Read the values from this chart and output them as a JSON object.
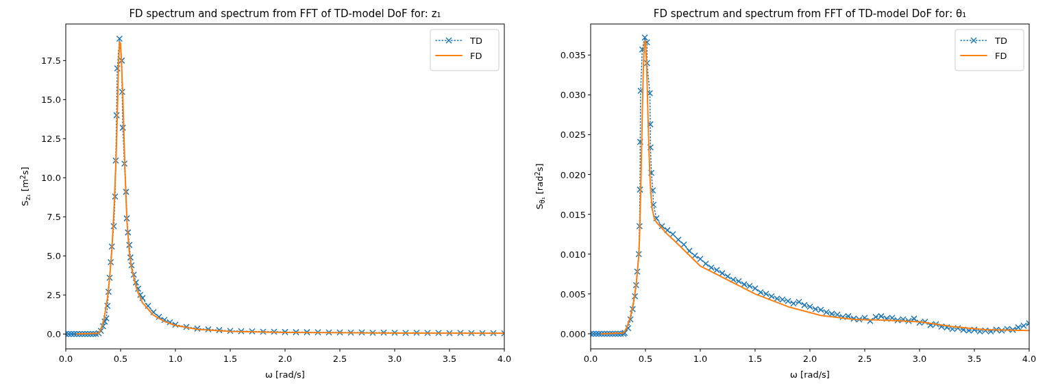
{
  "chart_data": [
    {
      "type": "line",
      "title": "FD spectrum and spectrum from FFT of TD-model DoF for: z₁",
      "xlabel": "ω [rad/s]",
      "ylabel": "S$_{z₁}$ [m$^{2}$s]",
      "xlim": [
        0,
        4
      ],
      "ylim": [
        -0.95,
        19.84
      ],
      "xticks": [
        {
          "value": 0,
          "label": "0.0"
        },
        {
          "value": 0.5,
          "label": "0.5"
        },
        {
          "value": 1,
          "label": "1.0"
        },
        {
          "value": 1.5,
          "label": "1.5"
        },
        {
          "value": 2,
          "label": "2.0"
        },
        {
          "value": 2.5,
          "label": "2.5"
        },
        {
          "value": 3,
          "label": "3.0"
        },
        {
          "value": 3.5,
          "label": "3.5"
        },
        {
          "value": 4,
          "label": "4.0"
        }
      ],
      "yticks": [
        {
          "value": 0,
          "label": "0.0"
        },
        2.5,
        {
          "value": 5,
          "label": "5.0"
        },
        7.5,
        {
          "value": 10,
          "label": "10.0"
        },
        12.5,
        {
          "value": 15,
          "label": "15.0"
        },
        17.5
      ],
      "grid": false,
      "legend": "top right",
      "series": [
        {
          "name": "TD",
          "color": "#1f77b4",
          "marker": "cross",
          "line_style": "dotted",
          "x": [
            0,
            0.025,
            0.05,
            0.075,
            0.1,
            0.125,
            0.15,
            0.175,
            0.2,
            0.225,
            0.25,
            0.275,
            0.3,
            0.32,
            0.34,
            0.355,
            0.37,
            0.38,
            0.39,
            0.4,
            0.41,
            0.42,
            0.438,
            0.45,
            0.456,
            0.463,
            0.47,
            0.49,
            0.51,
            0.514,
            0.52,
            0.535,
            0.55,
            0.556,
            0.567,
            0.58,
            0.59,
            0.6,
            0.62,
            0.64,
            0.66,
            0.68,
            0.7,
            0.75,
            0.8,
            0.85,
            0.9,
            0.95,
            1,
            1.1,
            1.2,
            1.3,
            1.4,
            1.5,
            1.6,
            1.7,
            1.8,
            1.9,
            2,
            2.1,
            2.2,
            2.3,
            2.4,
            2.5,
            2.6,
            2.7,
            2.8,
            2.9,
            3,
            3.1,
            3.2,
            3.3,
            3.4,
            3.5,
            3.6,
            3.7,
            3.8,
            3.9,
            4
          ],
          "values": [
            0,
            0,
            0,
            0,
            0,
            0,
            0,
            0,
            0,
            0,
            0,
            0,
            0.05,
            0.2,
            0.5,
            0.8,
            1,
            1.8,
            2.7,
            3.6,
            4.6,
            5.6,
            6.9,
            8.8,
            11.1,
            14,
            17,
            18.9,
            17.5,
            15.5,
            13.2,
            10.9,
            9.1,
            7.4,
            6.5,
            5.7,
            4.9,
            4.4,
            3.8,
            3.3,
            2.9,
            2.5,
            2.3,
            1.8,
            1.4,
            1.1,
            0.9,
            0.75,
            0.6,
            0.45,
            0.35,
            0.3,
            0.25,
            0.2,
            0.18,
            0.17,
            0.15,
            0.15,
            0.13,
            0.12,
            0.12,
            0.11,
            0.1,
            0.1,
            0.09,
            0.1,
            0.08,
            0.09,
            0.08,
            0.07,
            0.08,
            0.07,
            0.07,
            0.06,
            0.07,
            0.06,
            0.06,
            0.06,
            0.05
          ]
        },
        {
          "name": "FD",
          "color": "#ff7f0e",
          "marker": "none",
          "line_style": "solid",
          "x": [
            0.1,
            0.3,
            0.32,
            0.35,
            0.38,
            0.4,
            0.42,
            0.44,
            0.46,
            0.47,
            0.48,
            0.49,
            0.5,
            0.51,
            0.52,
            0.53,
            0.54,
            0.55,
            0.56,
            0.58,
            0.6,
            0.65,
            0.7,
            0.8,
            0.9,
            1,
            1.2,
            1.5,
            2,
            3,
            4
          ],
          "values": [
            0,
            0.05,
            0.3,
            1,
            2.3,
            3.6,
            5.3,
            8,
            11.5,
            14,
            17,
            18.7,
            18.6,
            17,
            15.3,
            12.8,
            10.5,
            8.6,
            7,
            5.2,
            4.2,
            2.8,
            2,
            1.2,
            0.8,
            0.55,
            0.3,
            0.17,
            0.1,
            0.06,
            0.05
          ]
        }
      ]
    },
    {
      "type": "line",
      "title": "FD spectrum and spectrum from FFT of TD-model DoF for: θ₁",
      "xlabel": "ω [rad/s]",
      "ylabel": "S$_{θ₁}$ [rad$^{2}$s]",
      "xlim": [
        0,
        4
      ],
      "ylim": [
        -0.0019,
        0.0389
      ],
      "xticks": [
        {
          "value": 0,
          "label": "0.0"
        },
        {
          "value": 0.5,
          "label": "0.5"
        },
        {
          "value": 1,
          "label": "1.0"
        },
        {
          "value": 1.5,
          "label": "1.5"
        },
        {
          "value": 2,
          "label": "2.0"
        },
        {
          "value": 2.5,
          "label": "2.5"
        },
        {
          "value": 3,
          "label": "3.0"
        },
        {
          "value": 3.5,
          "label": "3.5"
        },
        {
          "value": 4,
          "label": "4.0"
        }
      ],
      "yticks": [
        {
          "value": 0,
          "label": "0.000"
        },
        0.005,
        {
          "value": 0.01,
          "label": "0.010"
        },
        0.015,
        {
          "value": 0.02,
          "label": "0.020"
        },
        0.025,
        {
          "value": 0.03,
          "label": "0.030"
        },
        0.035
      ],
      "grid": false,
      "legend": "top right",
      "series": [
        {
          "name": "TD",
          "color": "#1f77b4",
          "marker": "cross",
          "line_style": "dotted",
          "x": [
            0,
            0.025,
            0.05,
            0.075,
            0.1,
            0.125,
            0.15,
            0.175,
            0.2,
            0.225,
            0.25,
            0.275,
            0.3,
            0.31,
            0.342,
            0.363,
            0.383,
            0.404,
            0.415,
            0.425,
            0.439,
            0.446,
            0.45,
            0.452,
            0.456,
            0.471,
            0.494,
            0.514,
            0.514,
            0.54,
            0.544,
            0.546,
            0.554,
            0.567,
            0.573,
            0.6,
            0.65,
            0.7,
            0.75,
            0.8,
            0.85,
            0.9,
            0.95,
            1,
            1.05,
            1.1,
            1.15,
            1.2,
            1.25,
            1.3,
            1.35,
            1.4,
            1.45,
            1.5,
            1.55,
            1.6,
            1.65,
            1.7,
            1.75,
            1.8,
            1.85,
            1.9,
            1.95,
            2,
            2.05,
            2.1,
            2.15,
            2.2,
            2.25,
            2.3,
            2.35,
            2.4,
            2.45,
            2.5,
            2.55,
            2.6,
            2.65,
            2.7,
            2.75,
            2.8,
            2.85,
            2.9,
            2.95,
            3,
            3.05,
            3.1,
            3.15,
            3.2,
            3.25,
            3.3,
            3.35,
            3.4,
            3.45,
            3.5,
            3.55,
            3.6,
            3.65,
            3.7,
            3.75,
            3.8,
            3.85,
            3.9,
            3.95,
            4
          ],
          "values": [
            0,
            0,
            0,
            0,
            0,
            0,
            0,
            0,
            0,
            0,
            0,
            0,
            0,
            0.0001,
            0.0007,
            0.0018,
            0.0031,
            0.0047,
            0.0061,
            0.0078,
            0.01,
            0.0135,
            0.0181,
            0.0241,
            0.0305,
            0.0357,
            0.0372,
            0.0366,
            0.034,
            0.0302,
            0.0263,
            0.0234,
            0.0202,
            0.018,
            0.0162,
            0.0145,
            0.0135,
            0.013,
            0.0125,
            0.0118,
            0.0112,
            0.0104,
            0.0098,
            0.0094,
            0.0088,
            0.0083,
            0.008,
            0.0076,
            0.0072,
            0.0068,
            0.0066,
            0.0062,
            0.006,
            0.0057,
            0.0052,
            0.005,
            0.0047,
            0.0044,
            0.0043,
            0.0041,
            0.0038,
            0.004,
            0.0036,
            0.0034,
            0.0031,
            0.003,
            0.0027,
            0.0025,
            0.0024,
            0.0021,
            0.0022,
            0.0019,
            0.0018,
            0.002,
            0.0016,
            0.0021,
            0.0022,
            0.0019,
            0.002,
            0.0017,
            0.0018,
            0.0016,
            0.0019,
            0.0014,
            0.0015,
            0.0011,
            0.0012,
            0.0009,
            0.0008,
            0.0006,
            0.0007,
            0.0005,
            0.0004,
            0.0005,
            0.0003,
            0.0004,
            0.0003,
            0.0005,
            0.0004,
            0.0006,
            0.0005,
            0.0008,
            0.001,
            0.0013
          ]
        },
        {
          "name": "FD",
          "color": "#ff7f0e",
          "marker": "none",
          "line_style": "solid",
          "x": [
            0.1,
            0.3,
            0.33,
            0.36,
            0.38,
            0.4,
            0.42,
            0.44,
            0.45,
            0.46,
            0.47,
            0.48,
            0.49,
            0.5,
            0.51,
            0.52,
            0.53,
            0.54,
            0.55,
            0.56,
            0.58,
            0.6,
            0.7,
            0.8,
            1,
            1.2,
            1.5,
            1.8,
            2.1,
            2.4,
            2.7,
            3,
            3.3,
            3.6,
            4
          ],
          "values": [
            0,
            0.0001,
            0.0008,
            0.002,
            0.0032,
            0.0047,
            0.0068,
            0.01,
            0.014,
            0.02,
            0.027,
            0.033,
            0.0365,
            0.0368,
            0.034,
            0.029,
            0.024,
            0.02,
            0.0175,
            0.0158,
            0.0145,
            0.014,
            0.0125,
            0.0112,
            0.0085,
            0.0071,
            0.005,
            0.0034,
            0.0023,
            0.0018,
            0.0017,
            0.0015,
            0.0009,
            0.0005,
            0.0004
          ]
        }
      ]
    }
  ]
}
